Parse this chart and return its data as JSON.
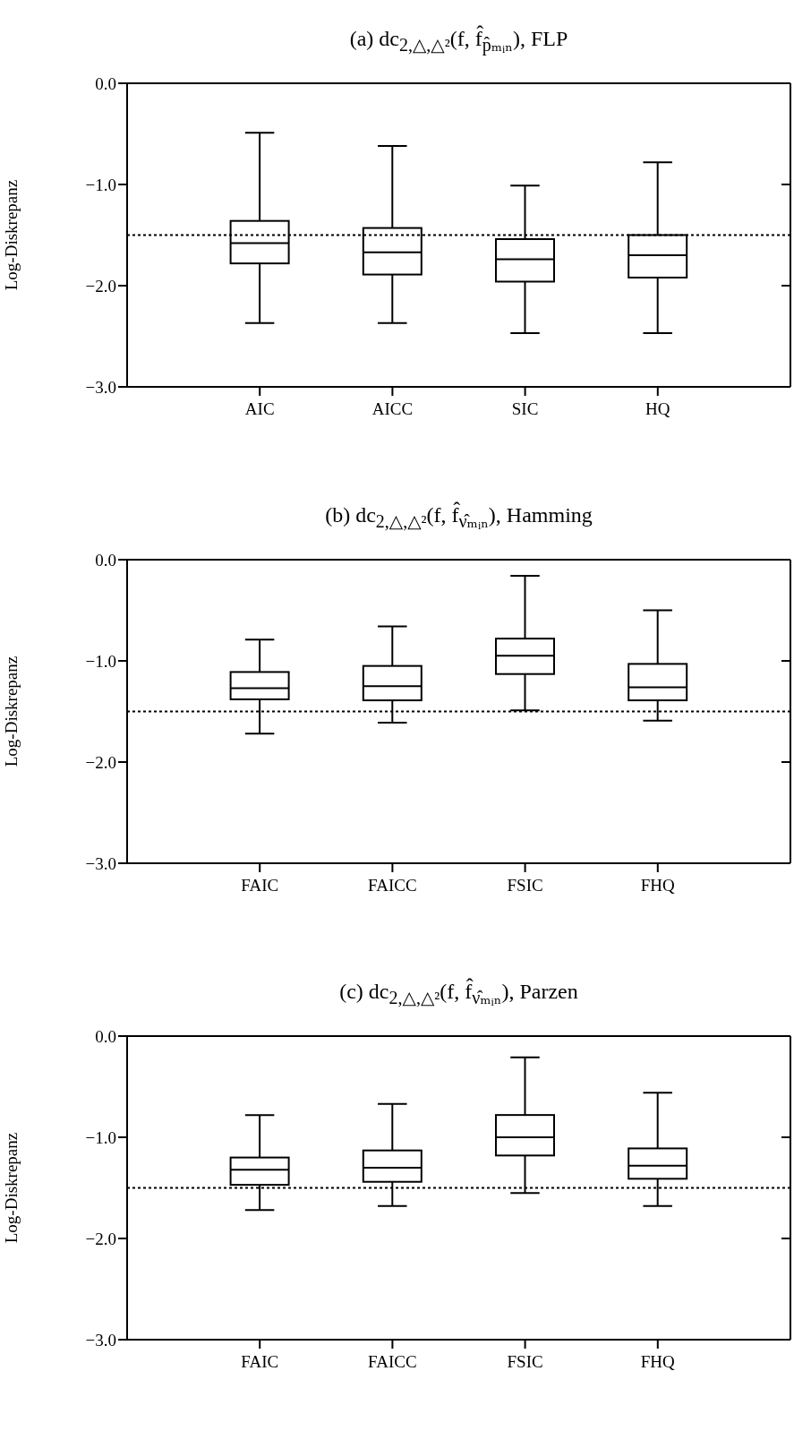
{
  "chart_data": [
    {
      "type": "box",
      "title": "(a) dc$_{2,△,△²}$(f, f̂$_{p̂ₘᵢₙ}$), FLP",
      "ylabel": "Log-Diskrepanz",
      "categories": [
        "AIC",
        "AICC",
        "SIC",
        "HQ"
      ],
      "ylim": [
        -3,
        0
      ],
      "yticks": [
        {
          "value": 0,
          "label": "0.0"
        },
        {
          "value": -1,
          "label": "−1.0"
        },
        {
          "value": -2,
          "label": "−2.0"
        },
        {
          "value": -3,
          "label": "−3.0"
        }
      ],
      "ref_lines": [
        {
          "axis": "y",
          "value": -1.5,
          "line_style": "dotted"
        }
      ],
      "boxes": [
        {
          "low": -2.37,
          "q1": -1.78,
          "median": -1.58,
          "q3": -1.36,
          "high": -0.49
        },
        {
          "low": -2.37,
          "q1": -1.89,
          "median": -1.67,
          "q3": -1.43,
          "high": -0.62
        },
        {
          "low": -2.47,
          "q1": -1.96,
          "median": -1.74,
          "q3": -1.54,
          "high": -1.01
        },
        {
          "low": -2.47,
          "q1": -1.92,
          "median": -1.7,
          "q3": -1.5,
          "high": -0.78
        }
      ]
    },
    {
      "type": "box",
      "title": "(b) dc$_{2,△,△²}$(f, f̂$_{ν̂ₘᵢₙ}$), Hamming",
      "ylabel": "Log-Diskrepanz",
      "categories": [
        "FAIC",
        "FAICC",
        "FSIC",
        "FHQ"
      ],
      "ylim": [
        -3,
        0
      ],
      "yticks": [
        {
          "value": 0,
          "label": "0.0"
        },
        {
          "value": -1,
          "label": "−1.0"
        },
        {
          "value": -2,
          "label": "−2.0"
        },
        {
          "value": -3,
          "label": "−3.0"
        }
      ],
      "ref_lines": [
        {
          "axis": "y",
          "value": -1.5,
          "line_style": "dotted"
        }
      ],
      "boxes": [
        {
          "low": -1.72,
          "q1": -1.38,
          "median": -1.27,
          "q3": -1.11,
          "high": -0.79
        },
        {
          "low": -1.61,
          "q1": -1.39,
          "median": -1.25,
          "q3": -1.05,
          "high": -0.66
        },
        {
          "low": -1.49,
          "q1": -1.13,
          "median": -0.95,
          "q3": -0.78,
          "high": -0.16
        },
        {
          "low": -1.59,
          "q1": -1.39,
          "median": -1.26,
          "q3": -1.03,
          "high": -0.5
        }
      ]
    },
    {
      "type": "box",
      "title": "(c) dc$_{2,△,△²}$(f, f̂$_{ν̂ₘᵢₙ}$), Parzen",
      "ylabel": "Log-Diskrepanz",
      "categories": [
        "FAIC",
        "FAICC",
        "FSIC",
        "FHQ"
      ],
      "ylim": [
        -3,
        0
      ],
      "yticks": [
        {
          "value": 0,
          "label": "0.0"
        },
        {
          "value": -1,
          "label": "−1.0"
        },
        {
          "value": -2,
          "label": "−2.0"
        },
        {
          "value": -3,
          "label": "−3.0"
        }
      ],
      "ref_lines": [
        {
          "axis": "y",
          "value": -1.5,
          "line_style": "dotted"
        }
      ],
      "boxes": [
        {
          "low": -1.72,
          "q1": -1.47,
          "median": -1.32,
          "q3": -1.2,
          "high": -0.78
        },
        {
          "low": -1.68,
          "q1": -1.44,
          "median": -1.3,
          "q3": -1.13,
          "high": -0.67
        },
        {
          "low": -1.55,
          "q1": -1.18,
          "median": -1.0,
          "q3": -0.78,
          "high": -0.21
        },
        {
          "low": -1.68,
          "q1": -1.41,
          "median": -1.28,
          "q3": -1.11,
          "high": -0.56
        }
      ]
    }
  ]
}
